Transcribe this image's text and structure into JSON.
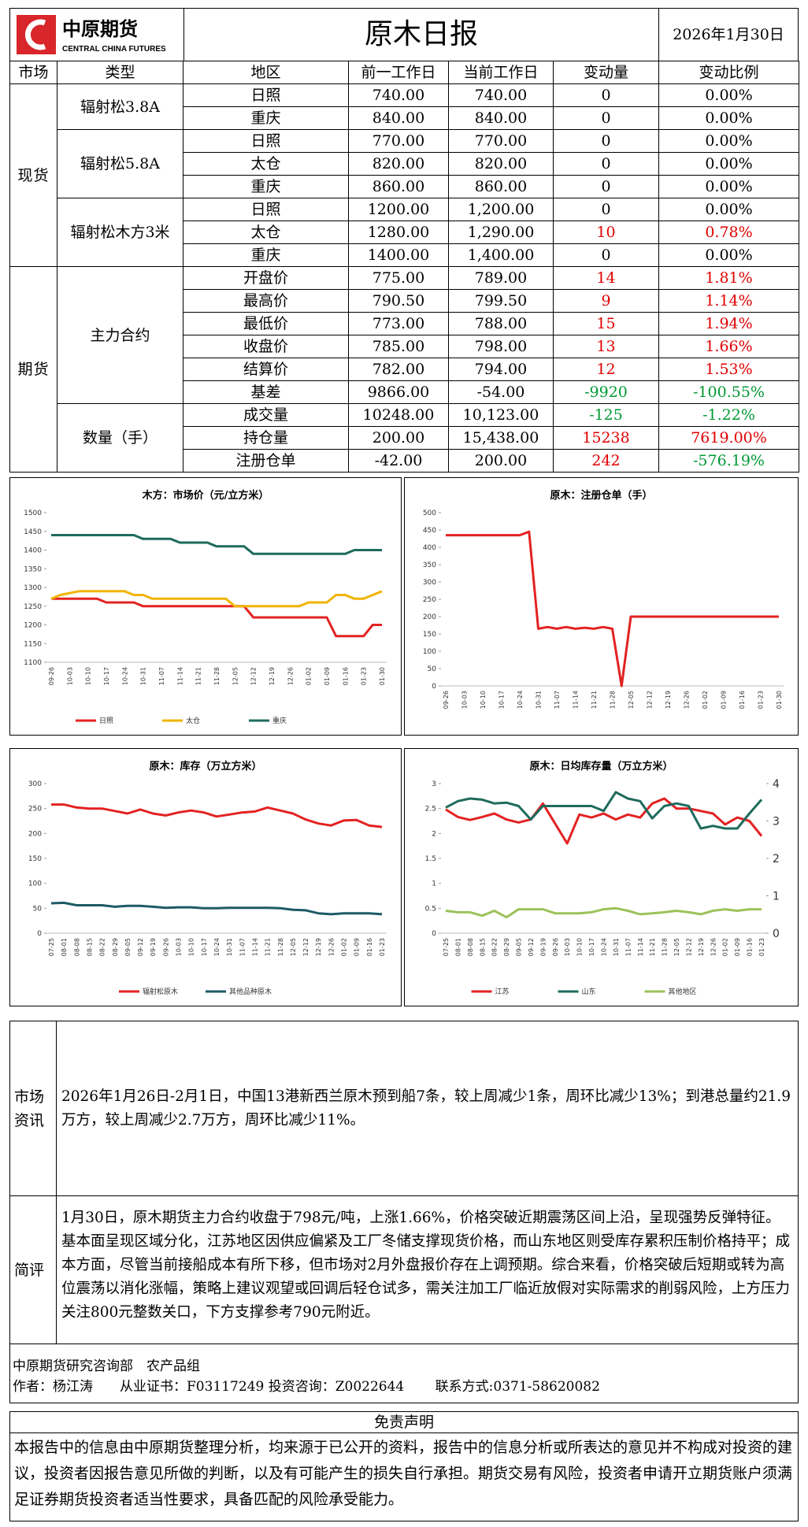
{
  "header": {
    "logo_cn": "中原期货",
    "logo_en": "CENTRAL CHINA FUTURES",
    "title": "原木日报",
    "date": "2026年1月30日"
  },
  "table": {
    "columns": [
      "市场",
      "类型",
      "地区",
      "前一工作日",
      "当前工作日",
      "变动量",
      "变动比例"
    ],
    "sections": [
      {
        "market": "现货",
        "groups": [
          {
            "type": "辐射松3.8A",
            "rows": [
              [
                "日照",
                "740.00",
                "740.00",
                "0",
                "0.00%"
              ],
              [
                "重庆",
                "840.00",
                "840.00",
                "0",
                "0.00%"
              ]
            ]
          },
          {
            "type": "辐射松5.8A",
            "rows": [
              [
                "日照",
                "770.00",
                "770.00",
                "0",
                "0.00%"
              ],
              [
                "太仓",
                "820.00",
                "820.00",
                "0",
                "0.00%"
              ],
              [
                "重庆",
                "860.00",
                "860.00",
                "0",
                "0.00%"
              ]
            ]
          },
          {
            "type": "辐射松木方3米",
            "rows": [
              [
                "日照",
                "1200.00",
                "1,200.00",
                "0",
                "0.00%"
              ],
              [
                "太仓",
                "1280.00",
                "1,290.00",
                "10",
                "0.78%"
              ],
              [
                "重庆",
                "1400.00",
                "1,400.00",
                "0",
                "0.00%"
              ]
            ]
          }
        ]
      },
      {
        "market": "期货",
        "groups": [
          {
            "type": "主力合约",
            "rows": [
              [
                "开盘价",
                "775.00",
                "789.00",
                "14",
                "1.81%"
              ],
              [
                "最高价",
                "790.50",
                "799.50",
                "9",
                "1.14%"
              ],
              [
                "最低价",
                "773.00",
                "788.00",
                "15",
                "1.94%"
              ],
              [
                "收盘价",
                "785.00",
                "798.00",
                "13",
                "1.66%"
              ],
              [
                "结算价",
                "782.00",
                "794.00",
                "12",
                "1.53%"
              ],
              [
                "基差",
                "9866.00",
                "-54.00",
                "-9920",
                "-100.55%"
              ]
            ]
          },
          {
            "type": "数量（手）",
            "rows": [
              [
                "成交量",
                "10248.00",
                "10,123.00",
                "-125",
                "-1.22%"
              ],
              [
                "持仓量",
                "200.00",
                "15,438.00",
                "15238",
                "7619.00%"
              ],
              [
                "注册仓单",
                "-42.00",
                "200.00",
                "242",
                "-576.19%"
              ]
            ]
          }
        ]
      }
    ]
  },
  "chart_data": [
    {
      "type": "line",
      "title": "木方：市场价（元/立方米）",
      "legend": "bottom",
      "categories": [
        "09-26",
        null,
        "10-03",
        null,
        "10-10",
        null,
        "10-17",
        null,
        "10-24",
        null,
        "10-31",
        null,
        "11-07",
        null,
        "11-14",
        null,
        "11-21",
        null,
        "11-28",
        null,
        "12-05",
        null,
        "12-12",
        null,
        "12-19",
        null,
        "12-26",
        null,
        "01-02",
        null,
        "01-09",
        null,
        "01-16",
        null,
        "01-23",
        null,
        "01-30"
      ],
      "ylim": [
        1100,
        1500
      ],
      "yticks": [
        1100,
        1150,
        1200,
        1250,
        1300,
        1350,
        1400,
        1450,
        1500
      ],
      "series": [
        {
          "name": "日照",
          "color": "#e32222",
          "values": [
            1270,
            1270,
            1270,
            1270,
            1270,
            1270,
            1260,
            1260,
            1260,
            1260,
            1250,
            1250,
            1250,
            1250,
            1250,
            1250,
            1250,
            1250,
            1250,
            1250,
            1250,
            1250,
            1220,
            1220,
            1220,
            1220,
            1220,
            1220,
            1220,
            1220,
            1220,
            1170,
            1170,
            1170,
            1170,
            1200,
            1200
          ]
        },
        {
          "name": "太仓",
          "color": "#f0b400",
          "values": [
            1270,
            1280,
            1285,
            1290,
            1290,
            1290,
            1290,
            1290,
            1290,
            1280,
            1280,
            1270,
            1270,
            1270,
            1270,
            1270,
            1270,
            1270,
            1270,
            1270,
            1250,
            1250,
            1250,
            1250,
            1250,
            1250,
            1250,
            1250,
            1260,
            1260,
            1260,
            1280,
            1280,
            1270,
            1270,
            1280,
            1290
          ]
        },
        {
          "name": "重庆",
          "color": "#1e6b5c",
          "values": [
            1440,
            1440,
            1440,
            1440,
            1440,
            1440,
            1440,
            1440,
            1440,
            1440,
            1430,
            1430,
            1430,
            1430,
            1420,
            1420,
            1420,
            1420,
            1410,
            1410,
            1410,
            1410,
            1390,
            1390,
            1390,
            1390,
            1390,
            1390,
            1390,
            1390,
            1390,
            1390,
            1390,
            1400,
            1400,
            1400,
            1400
          ]
        }
      ]
    },
    {
      "type": "line",
      "title": "原木：注册仓单（手）",
      "categories": [
        "09-26",
        null,
        "10-03",
        null,
        "10-10",
        null,
        "10-17",
        null,
        "10-24",
        null,
        "10-31",
        null,
        "11-07",
        null,
        "11-14",
        null,
        "11-21",
        null,
        "11-28",
        null,
        "12-05",
        null,
        "12-12",
        null,
        "12-19",
        null,
        "12-26",
        null,
        "01-02",
        null,
        "01-09",
        null,
        "01-16",
        null,
        "01-23",
        null,
        "01-30"
      ],
      "ylim": [
        0,
        500
      ],
      "yticks": [
        0,
        50,
        100,
        150,
        200,
        250,
        300,
        350,
        400,
        450,
        500
      ],
      "series": [
        {
          "color": "#e32222",
          "values": [
            435,
            435,
            435,
            435,
            435,
            435,
            435,
            435,
            435,
            445,
            165,
            170,
            165,
            170,
            165,
            168,
            165,
            170,
            165,
            0,
            200,
            200,
            200,
            200,
            200,
            200,
            200,
            200,
            200,
            200,
            200,
            200,
            200,
            200,
            200,
            200,
            200
          ]
        }
      ]
    },
    {
      "type": "line",
      "title": "原木：库存（万立方米）",
      "legend": "bottom",
      "categories": [
        "07-25",
        "08-01",
        "08-08",
        "08-15",
        "08-22",
        "08-29",
        "09-05",
        "09-12",
        "09-19",
        "09-26",
        "10-03",
        "10-10",
        "10-17",
        "10-24",
        "10-31",
        "11-07",
        "11-14",
        "11-21",
        "11-28",
        "12-05",
        "12-12",
        "12-19",
        "12-26",
        "01-02",
        "01-09",
        "01-16",
        "01-23"
      ],
      "ylim": [
        0,
        300
      ],
      "yticks": [
        0,
        50,
        100,
        150,
        200,
        250,
        300
      ],
      "series": [
        {
          "name": "辐射松原木",
          "color": "#e32222",
          "values": [
            258,
            258,
            252,
            250,
            250,
            245,
            240,
            248,
            240,
            236,
            242,
            246,
            242,
            234,
            238,
            242,
            244,
            252,
            246,
            240,
            228,
            220,
            216,
            226,
            227,
            216,
            213
          ]
        },
        {
          "name": "其他品种原木",
          "color": "#1e5a66",
          "values": [
            60,
            61,
            56,
            56,
            56,
            53,
            55,
            55,
            53,
            51,
            52,
            52,
            50,
            50,
            51,
            51,
            51,
            51,
            50,
            47,
            46,
            40,
            38,
            40,
            40,
            40,
            38
          ]
        }
      ]
    },
    {
      "type": "line",
      "title": "原木：日均库存量（万立方米）",
      "legend": "bottom",
      "categories": [
        "07-25",
        "08-01",
        "08-08",
        "08-15",
        "08-22",
        "08-29",
        "09-05",
        "09-12",
        "09-19",
        "09-26",
        "10-03",
        "10-10",
        "10-17",
        "10-24",
        "10-31",
        "11-07",
        "11-14",
        "11-21",
        "11-28",
        "12-05",
        "12-12",
        "12-19",
        "12-26",
        "01-02",
        "01-09",
        "01-16",
        "01-23"
      ],
      "ylim": [
        0,
        3
      ],
      "yticks": [
        0,
        0.5,
        1,
        1.5,
        2,
        2.5,
        3
      ],
      "y2lim": [
        0,
        4
      ],
      "y2ticks": [
        0,
        1,
        2,
        3,
        4
      ],
      "series": [
        {
          "name": "江苏",
          "color": "#e32222",
          "values": [
            2.48,
            2.33,
            2.27,
            2.33,
            2.4,
            2.28,
            2.22,
            2.28,
            2.6,
            2.2,
            1.8,
            2.38,
            2.32,
            2.4,
            2.28,
            2.38,
            2.32,
            2.6,
            2.7,
            2.5,
            2.5,
            2.45,
            2.4,
            2.18,
            2.32,
            2.25,
            1.95
          ]
        },
        {
          "name": "山东",
          "color": "#1e6b5c",
          "axis": "y2",
          "values": [
            3.36,
            3.53,
            3.6,
            3.57,
            3.47,
            3.49,
            3.4,
            3.04,
            3.4,
            3.4,
            3.4,
            3.4,
            3.4,
            3.27,
            3.77,
            3.6,
            3.53,
            3.07,
            3.4,
            3.47,
            3.4,
            2.8,
            2.87,
            2.8,
            2.8,
            3.2,
            3.57
          ]
        },
        {
          "name": "其他地区",
          "color": "#9cc25a",
          "values": [
            0.45,
            0.42,
            0.42,
            0.35,
            0.45,
            0.32,
            0.48,
            0.48,
            0.48,
            0.4,
            0.4,
            0.4,
            0.42,
            0.48,
            0.5,
            0.45,
            0.38,
            0.4,
            0.42,
            0.45,
            0.42,
            0.38,
            0.45,
            0.48,
            0.45,
            0.48,
            0.48
          ]
        }
      ]
    }
  ],
  "info": {
    "label": "市场资讯",
    "text": "2026年1月26日-2月1日，中国13港新西兰原木预到船7条，较上周减少1条，周环比减少13%；到港总量约21.9万方，较上周减少2.7万方，周环比减少11%。"
  },
  "comment": {
    "label": "简评",
    "text": "1月30日，原木期货主力合约收盘于798元/吨，上涨1.66%，价格突破近期震荡区间上沿，呈现强势反弹特征。基本面呈现区域分化，江苏地区因供应偏紧及工厂冬储支撑现货价格，而山东地区则受库存累积压制价格持平；成本方面，尽管当前接船成本有所下移，但市场对2月外盘报价存在上调预期。综合来看，价格突破后短期或转为高位震荡以消化涨幅，策略上建议观望或回调后轻仓试多，需关注加工厂临近放假对实际需求的削弱风险，上方压力关注800元整数关口，下方支撑参考790元附近。"
  },
  "footer": {
    "dept": "中原期货研究咨询部　农产品组",
    "author": "作者：杨江涛　　从业证书：F03117249 投资咨询：Z0022644　　 联系方式:0371-58620082"
  },
  "disclaimer": {
    "title": "免责声明",
    "text": "本报告中的信息由中原期货整理分析，均来源于已公开的资料，报告中的信息分析或所表达的意见并不构成对投资的建议，投资者因报告意见所做的判断，以及有可能产生的损失自行承担。期货交易有风险，投资者申请开立期货账户须满足证券期货投资者适当性要求，具备匹配的风险承受能力。"
  }
}
